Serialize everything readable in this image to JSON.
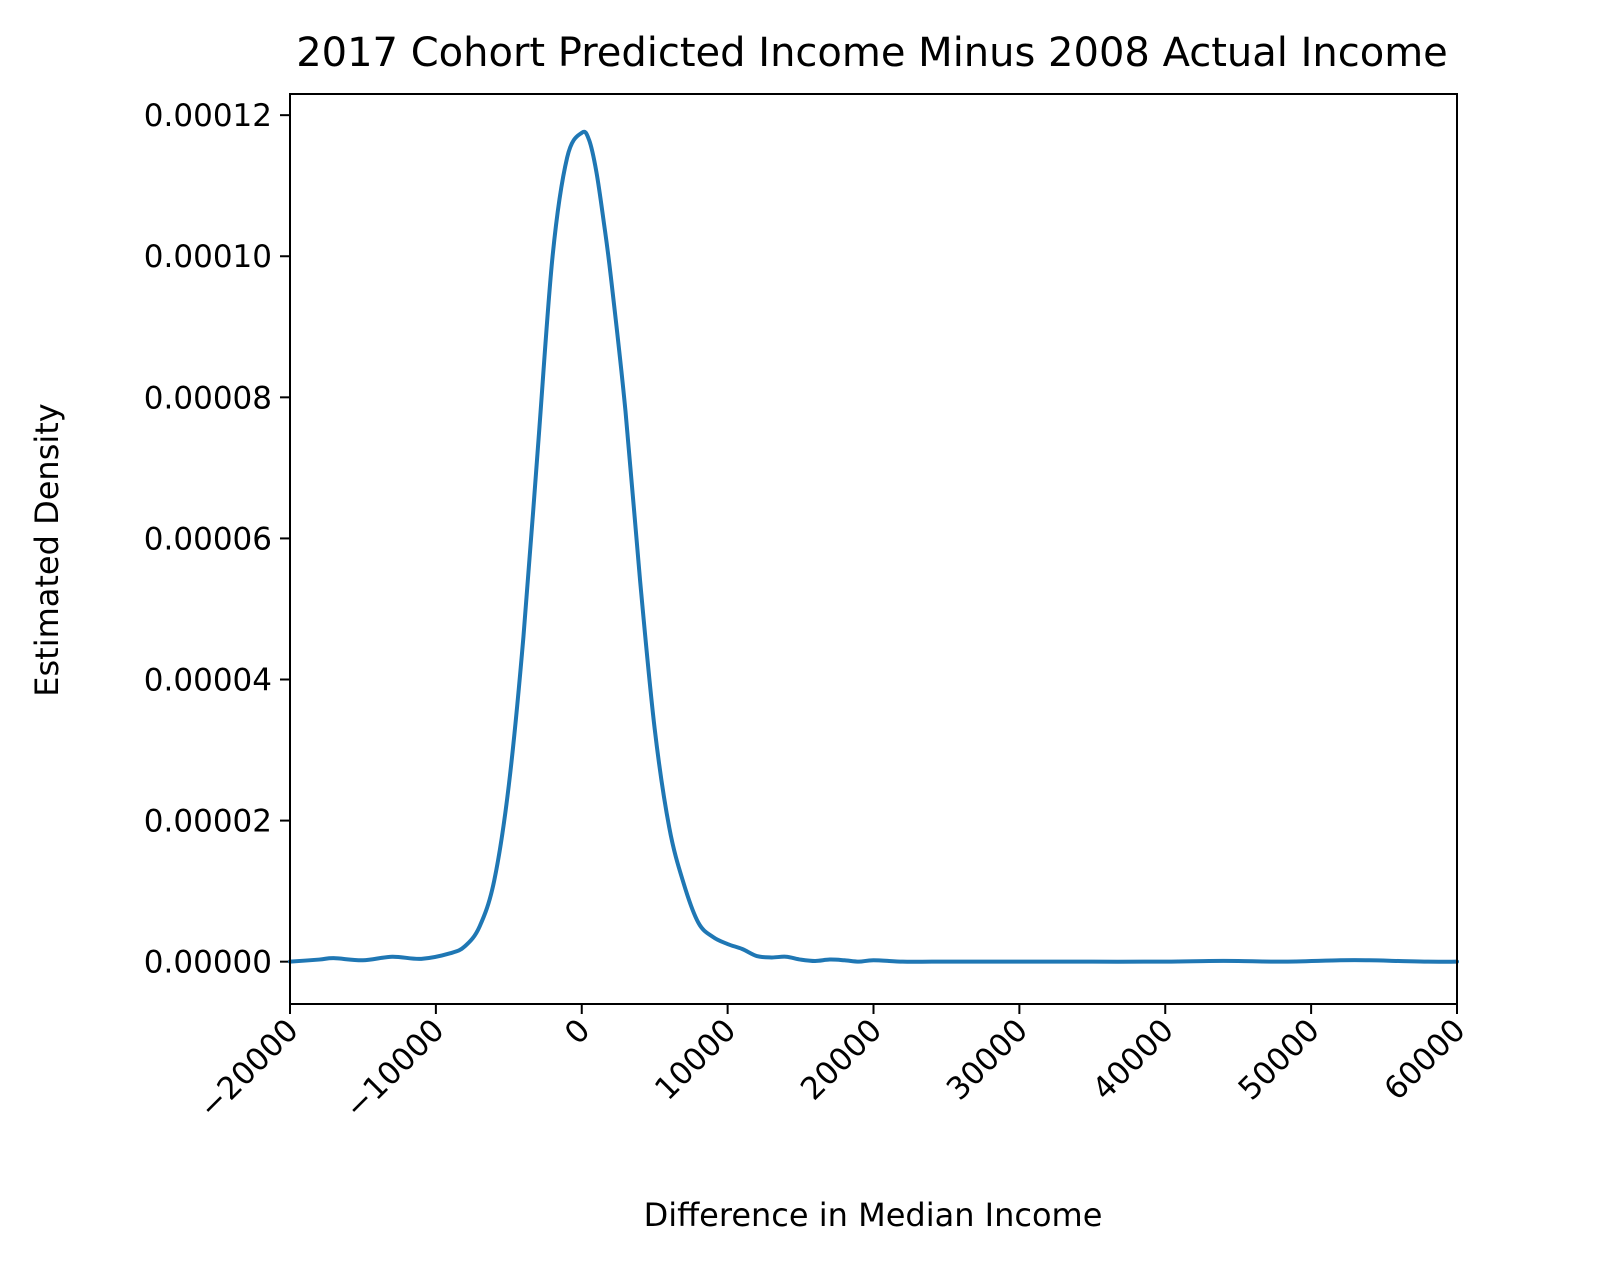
{
  "chart_data": {
    "type": "line",
    "title": "2017 Cohort Predicted Income Minus 2008 Actual Income",
    "xlabel": "Difference in Median Income",
    "ylabel": "Estimated Density",
    "xlim": [
      -20000,
      60000
    ],
    "ylim": [
      -6e-06,
      0.000123
    ],
    "x_ticks": [
      -20000,
      -10000,
      0,
      10000,
      20000,
      30000,
      40000,
      50000,
      60000
    ],
    "x_tick_labels": [
      "−20000",
      "−10000",
      "0",
      "10000",
      "20000",
      "30000",
      "40000",
      "50000",
      "60000"
    ],
    "y_ticks": [
      0,
      2e-05,
      4e-05,
      6e-05,
      8e-05,
      0.0001,
      0.00012
    ],
    "y_tick_labels": [
      "0.00000",
      "0.00002",
      "0.00004",
      "0.00006",
      "0.00008",
      "0.00010",
      "0.00012"
    ],
    "grid": false,
    "line_color": "#1f77b4",
    "series": [
      {
        "x": [
          -20000,
          -18000,
          -17000,
          -15000,
          -13000,
          -11000,
          -9000,
          -8000,
          -7000,
          -6000,
          -5000,
          -4000,
          -3000,
          -2000,
          -1000,
          0,
          500,
          1000,
          1500,
          2000,
          3000,
          4000,
          5000,
          6000,
          7000,
          8000,
          9000,
          10000,
          11000,
          12000,
          13000,
          14000,
          15000,
          16000,
          17000,
          18000,
          19000,
          20000,
          22000,
          24000,
          26000,
          28000,
          30000,
          35000,
          40000,
          43000,
          45000,
          48000,
          52000,
          54000,
          56000,
          58000,
          60000
        ],
        "y": [
          0.0,
          3e-07,
          5e-07,
          2e-07,
          7e-07,
          4e-07,
          1.2e-06,
          2.2e-06,
          5e-06,
          1.15e-05,
          2.5e-05,
          4.6e-05,
          7.3e-05,
          0.0001,
          0.000114,
          0.0001175,
          0.0001165,
          0.000112,
          0.000105,
          9.7e-05,
          7.8e-05,
          5.4e-05,
          3.3e-05,
          1.9e-05,
          1.1e-05,
          5.5e-06,
          3.5e-06,
          2.5e-06,
          1.8e-06,
          8e-07,
          6e-07,
          7e-07,
          3e-07,
          1e-07,
          3e-07,
          2e-07,
          0.0,
          2e-07,
          0.0,
          0.0,
          0.0,
          0.0,
          0.0,
          0.0,
          0.0,
          1e-07,
          1e-07,
          0.0,
          2e-07,
          2e-07,
          1e-07,
          0.0,
          0.0
        ]
      }
    ]
  }
}
